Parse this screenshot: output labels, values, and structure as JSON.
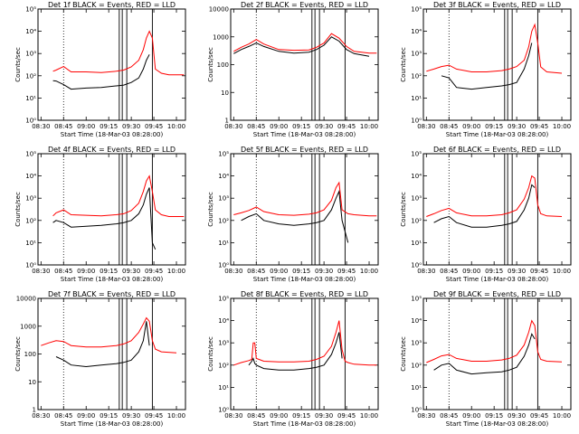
{
  "xlabel": "Start Time (18-Mar-03 08:28:00)",
  "ylabel": "Counts/sec",
  "x_ticks": [
    "08:30",
    "08:45",
    "09:00",
    "09:15",
    "09:30",
    "09:45",
    "10:00"
  ],
  "colors": {
    "events": "#000000",
    "lld": "#ff0000"
  },
  "chart_data": [
    {
      "type": "line",
      "title": "Det 1f BLACK = Events, RED = LLD",
      "ylog": true,
      "ylim": [
        1,
        100000
      ],
      "yticks": [
        "10⁰",
        "10¹",
        "10²",
        "10³",
        "10⁴",
        "10⁵"
      ],
      "x": [
        "08:38",
        "08:40",
        "08:45",
        "08:50",
        "09:00",
        "09:10",
        "09:20",
        "09:25",
        "09:30",
        "09:35",
        "09:38",
        "09:40",
        "09:42",
        "09:44",
        "09:46",
        "09:50",
        "09:55",
        "10:00",
        "10:05"
      ],
      "series": [
        {
          "name": "Events",
          "values": [
            60,
            58,
            40,
            25,
            28,
            30,
            35,
            38,
            50,
            80,
            200,
            500,
            900,
            null,
            null,
            null,
            null,
            null,
            null
          ]
        },
        {
          "name": "LLD",
          "values": [
            160,
            180,
            260,
            150,
            150,
            140,
            160,
            180,
            250,
            500,
            1500,
            5000,
            10000,
            5000,
            200,
            130,
            110,
            110,
            110
          ]
        }
      ]
    },
    {
      "type": "line",
      "title": "Det 2f BLACK = Events, RED = LLD",
      "ylog": true,
      "ylim": [
        1,
        10000
      ],
      "yticks": [
        "1",
        "10",
        "100",
        "1000",
        "10000"
      ],
      "x": [
        "08:30",
        "08:35",
        "08:40",
        "08:45",
        "08:50",
        "09:00",
        "09:10",
        "09:20",
        "09:25",
        "09:30",
        "09:35",
        "09:40",
        "09:45",
        "09:50",
        "10:00",
        "10:05"
      ],
      "series": [
        {
          "name": "Events",
          "values": [
            250,
            350,
            450,
            600,
            450,
            300,
            260,
            280,
            350,
            500,
            1000,
            700,
            350,
            250,
            200,
            null
          ]
        },
        {
          "name": "LLD",
          "values": [
            300,
            420,
            550,
            800,
            550,
            350,
            330,
            340,
            420,
            600,
            1300,
            900,
            450,
            300,
            260,
            260
          ]
        }
      ]
    },
    {
      "type": "line",
      "title": "Det 3f BLACK = Events, RED = LLD",
      "ylog": true,
      "ylim": [
        1,
        100000
      ],
      "yticks": [
        "10⁰",
        "10¹",
        "10²",
        "10³",
        "10⁴",
        "10⁵"
      ],
      "x": [
        "08:30",
        "08:35",
        "08:40",
        "08:45",
        "08:50",
        "09:00",
        "09:10",
        "09:20",
        "09:25",
        "09:30",
        "09:35",
        "09:38",
        "09:40",
        "09:42",
        "09:44",
        "09:46",
        "09:50",
        "10:00"
      ],
      "series": [
        {
          "name": "Events",
          "values": [
            null,
            null,
            100,
            80,
            30,
            25,
            30,
            35,
            40,
            50,
            200,
            800,
            3000,
            null,
            null,
            null,
            null,
            null
          ]
        },
        {
          "name": "LLD",
          "values": [
            160,
            200,
            260,
            300,
            200,
            150,
            150,
            170,
            200,
            260,
            500,
            2000,
            10000,
            20000,
            3000,
            250,
            150,
            130
          ]
        }
      ]
    },
    {
      "type": "line",
      "title": "Det 4f BLACK = Events, RED = LLD",
      "ylog": true,
      "ylim": [
        1,
        100000
      ],
      "yticks": [
        "10⁰",
        "10¹",
        "10²",
        "10³",
        "10⁴",
        "10⁵"
      ],
      "x": [
        "08:38",
        "08:40",
        "08:45",
        "08:50",
        "09:00",
        "09:10",
        "09:20",
        "09:25",
        "09:30",
        "09:35",
        "09:38",
        "09:40",
        "09:42",
        "09:44",
        "09:46",
        "09:50",
        "09:55",
        "10:00",
        "10:05"
      ],
      "series": [
        {
          "name": "Events",
          "values": [
            80,
            100,
            80,
            50,
            55,
            60,
            70,
            80,
            100,
            200,
            500,
            1500,
            3000,
            10,
            5,
            null,
            null,
            null,
            null
          ]
        },
        {
          "name": "LLD",
          "values": [
            160,
            220,
            300,
            180,
            170,
            160,
            180,
            200,
            280,
            600,
            2000,
            6000,
            10000,
            2000,
            300,
            180,
            150,
            150,
            150
          ]
        }
      ]
    },
    {
      "type": "line",
      "title": "Det 5f BLACK = Events, RED = LLD",
      "ylog": true,
      "ylim": [
        1,
        100000
      ],
      "yticks": [
        "10⁰",
        "10¹",
        "10²",
        "10³",
        "10⁴",
        "10⁵"
      ],
      "x": [
        "08:30",
        "08:35",
        "08:40",
        "08:45",
        "08:50",
        "09:00",
        "09:10",
        "09:20",
        "09:25",
        "09:30",
        "09:35",
        "09:38",
        "09:40",
        "09:42",
        "09:46",
        "09:50",
        "10:00",
        "10:05"
      ],
      "series": [
        {
          "name": "Events",
          "values": [
            null,
            100,
            150,
            200,
            100,
            70,
            60,
            70,
            80,
            100,
            300,
            1000,
            2000,
            100,
            10,
            null,
            null,
            null
          ]
        },
        {
          "name": "LLD",
          "values": [
            180,
            220,
            280,
            400,
            250,
            180,
            170,
            190,
            220,
            300,
            800,
            3000,
            5000,
            300,
            200,
            180,
            160,
            160
          ]
        }
      ]
    },
    {
      "type": "line",
      "title": "Det 6f BLACK = Events, RED = LLD",
      "ylog": true,
      "ylim": [
        1,
        100000
      ],
      "yticks": [
        "10⁰",
        "10¹",
        "10²",
        "10³",
        "10⁴",
        "10⁵"
      ],
      "x": [
        "08:30",
        "08:35",
        "08:40",
        "08:45",
        "08:50",
        "09:00",
        "09:10",
        "09:20",
        "09:25",
        "09:30",
        "09:35",
        "09:38",
        "09:40",
        "09:42",
        "09:44",
        "09:46",
        "09:50",
        "10:00"
      ],
      "series": [
        {
          "name": "Events",
          "values": [
            null,
            80,
            120,
            150,
            80,
            50,
            50,
            60,
            70,
            90,
            300,
            1000,
            4000,
            3000,
            null,
            null,
            null,
            null
          ]
        },
        {
          "name": "LLD",
          "values": [
            150,
            200,
            280,
            350,
            220,
            160,
            160,
            180,
            220,
            300,
            900,
            3000,
            10000,
            8000,
            500,
            200,
            160,
            150
          ]
        }
      ]
    },
    {
      "type": "line",
      "title": "Det 7f BLACK = Events, RED = LLD",
      "ylog": true,
      "ylim": [
        1,
        10000
      ],
      "yticks": [
        "1",
        "10",
        "100",
        "1000",
        "10000"
      ],
      "x": [
        "08:30",
        "08:35",
        "08:40",
        "08:45",
        "08:50",
        "09:00",
        "09:10",
        "09:20",
        "09:25",
        "09:30",
        "09:35",
        "09:38",
        "09:40",
        "09:42",
        "09:44",
        "09:46",
        "09:50",
        "10:00"
      ],
      "series": [
        {
          "name": "Events",
          "values": [
            null,
            null,
            80,
            60,
            40,
            35,
            40,
            45,
            50,
            60,
            120,
            300,
            1500,
            200,
            null,
            null,
            null,
            null
          ]
        },
        {
          "name": "LLD",
          "values": [
            200,
            250,
            300,
            280,
            200,
            180,
            180,
            200,
            230,
            300,
            600,
            1200,
            2000,
            1500,
            300,
            150,
            120,
            110
          ]
        }
      ]
    },
    {
      "type": "line",
      "title": "Det 8f BLACK = Events, RED = LLD",
      "ylog": true,
      "ylim": [
        1,
        100000
      ],
      "yticks": [
        "10⁰",
        "10¹",
        "10²",
        "10³",
        "10⁴",
        "10⁵"
      ],
      "x": [
        "08:30",
        "08:35",
        "08:40",
        "08:42",
        "08:43",
        "08:44",
        "08:45",
        "08:50",
        "09:00",
        "09:10",
        "09:20",
        "09:25",
        "09:30",
        "09:35",
        "09:38",
        "09:40",
        "09:42",
        "09:44",
        "09:46",
        "09:50",
        "10:00",
        "10:05"
      ],
      "series": [
        {
          "name": "Events",
          "values": [
            null,
            null,
            100,
            150,
            200,
            120,
            100,
            70,
            60,
            60,
            70,
            80,
            100,
            300,
            1000,
            3000,
            200,
            null,
            null,
            null,
            null,
            null
          ]
        },
        {
          "name": "LLD",
          "values": [
            100,
            130,
            160,
            180,
            1000,
            1000,
            200,
            150,
            140,
            140,
            150,
            180,
            250,
            700,
            3000,
            10000,
            500,
            150,
            130,
            110,
            100,
            100
          ]
        }
      ]
    },
    {
      "type": "line",
      "title": "Det 9f BLACK = Events, RED = LLD",
      "ylog": true,
      "ylim": [
        1,
        100000
      ],
      "yticks": [
        "10⁰",
        "10¹",
        "10²",
        "10³",
        "10⁴",
        "10⁵"
      ],
      "x": [
        "08:30",
        "08:35",
        "08:40",
        "08:45",
        "08:50",
        "09:00",
        "09:10",
        "09:20",
        "09:25",
        "09:30",
        "09:35",
        "09:38",
        "09:40",
        "09:42",
        "09:44",
        "09:46",
        "09:50",
        "10:00"
      ],
      "series": [
        {
          "name": "Events",
          "values": [
            null,
            60,
            100,
            120,
            60,
            40,
            45,
            50,
            60,
            80,
            250,
            800,
            2500,
            1500,
            null,
            null,
            null,
            null
          ]
        },
        {
          "name": "LLD",
          "values": [
            130,
            180,
            260,
            300,
            200,
            150,
            150,
            170,
            200,
            280,
            800,
            3000,
            10000,
            6000,
            400,
            180,
            150,
            140
          ]
        }
      ]
    }
  ]
}
